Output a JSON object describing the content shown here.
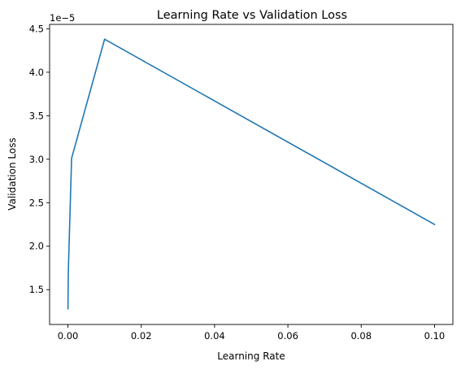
{
  "chart_data": {
    "type": "line",
    "title": "Learning Rate vs Validation Loss",
    "xlabel": "Learning Rate",
    "ylabel": "Validation Loss",
    "y_offset_label": "1e−5",
    "xlim": [
      -0.005,
      0.105
    ],
    "ylim": [
      1.1e-05,
      4.55e-05
    ],
    "x_ticks": [
      0.0,
      0.02,
      0.04,
      0.06,
      0.08,
      0.1
    ],
    "x_tick_labels": [
      "0.00",
      "0.02",
      "0.04",
      "0.06",
      "0.08",
      "0.10"
    ],
    "y_ticks": [
      1.5e-05,
      2e-05,
      2.5e-05,
      3e-05,
      3.5e-05,
      4e-05,
      4.5e-05
    ],
    "y_tick_labels": [
      "1.5",
      "2.0",
      "2.5",
      "3.0",
      "3.5",
      "4.0",
      "4.5"
    ],
    "grid": false,
    "series": [
      {
        "color": "#1f77b4",
        "x": [
          1e-05,
          0.0001,
          0.001,
          0.01,
          0.1
        ],
        "y": [
          1.28e-05,
          1.7e-05,
          3.01e-05,
          4.38e-05,
          2.25e-05
        ]
      }
    ]
  }
}
